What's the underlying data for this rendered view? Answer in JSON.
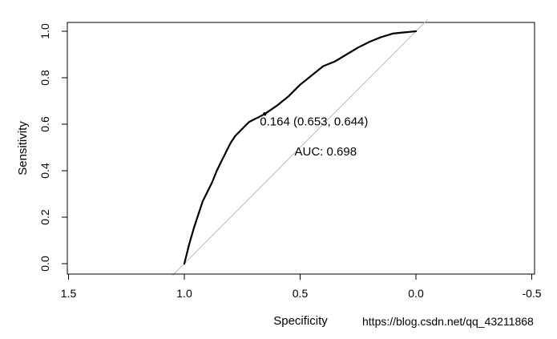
{
  "chart_data": {
    "type": "line",
    "title": "",
    "xlabel": "Specificity",
    "ylabel": "Sensitivity",
    "xlim": [
      1.5,
      -0.5
    ],
    "ylim": [
      0,
      1
    ],
    "x_reversed": true,
    "grid": false,
    "x_ticks": [
      1.5,
      1.0,
      0.5,
      0.0,
      -0.5
    ],
    "x_tick_labels": [
      "1.5",
      "1.0",
      "0.5",
      "0.0",
      "-0.5"
    ],
    "y_ticks": [
      0.0,
      0.2,
      0.4,
      0.6,
      0.8,
      1.0
    ],
    "y_tick_labels": [
      "0.0",
      "0.2",
      "0.4",
      "0.6",
      "0.8",
      "1.0"
    ],
    "series": [
      {
        "color": "#000000",
        "x": [
          1.0,
          0.98,
          0.96,
          0.94,
          0.92,
          0.9,
          0.88,
          0.86,
          0.84,
          0.82,
          0.8,
          0.78,
          0.76,
          0.74,
          0.72,
          0.7,
          0.68,
          0.653,
          0.6,
          0.55,
          0.5,
          0.45,
          0.4,
          0.35,
          0.3,
          0.25,
          0.2,
          0.15,
          0.1,
          0.05,
          0.0
        ],
        "y": [
          0.0,
          0.08,
          0.15,
          0.21,
          0.27,
          0.31,
          0.35,
          0.4,
          0.44,
          0.48,
          0.52,
          0.55,
          0.57,
          0.59,
          0.61,
          0.62,
          0.63,
          0.644,
          0.68,
          0.72,
          0.77,
          0.81,
          0.85,
          0.87,
          0.9,
          0.93,
          0.955,
          0.975,
          0.99,
          0.995,
          1.0
        ]
      }
    ],
    "reference_line": {
      "from": [
        1.05,
        -0.05
      ],
      "to": [
        -0.05,
        1.05
      ],
      "color": "#bbbbbb"
    },
    "annotations": [
      {
        "text": "0.164 (0.653, 0.644)",
        "x": 0.44,
        "y": 0.595
      },
      {
        "text": "AUC: 0.698",
        "x": 0.39,
        "y": 0.465
      }
    ],
    "watermark": "https://blog.csdn.net/qq_43211868"
  }
}
